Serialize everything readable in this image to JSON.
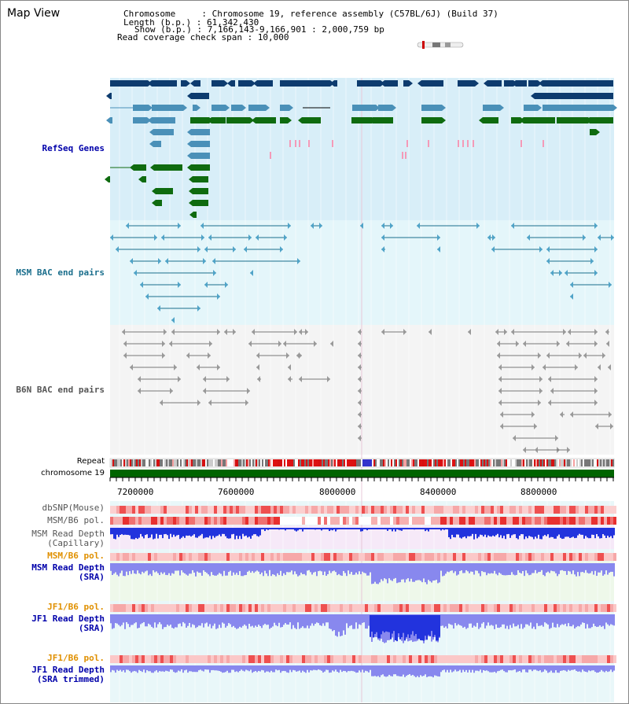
{
  "header": {
    "view_title": "Map View",
    "chromosome_label": "Chromosome     : Chromosome 19, reference assembly (C57BL/6J) (Build 37)",
    "length_label": "Length (b.p.) : 61,342,430",
    "show_label": "Show (b.p.) : 7,166,143-9,166,901 : 2,000,759 bp",
    "coverage_label": "Read coverage check span : 10,000"
  },
  "tracks": {
    "refseq": "RefSeq Genes",
    "msm_bac": "MSM BAC end pairs",
    "b6n_bac": "B6N BAC end pairs",
    "repeat": "Repeat",
    "chromosome": "chromosome 19",
    "dbsnp": "dbSNP(Mouse)",
    "msm_pol": "MSM/B6 pol.",
    "msm_depth_cap": "MSM Read Depth\n(Capillary)",
    "msm_pol2": "MSM/B6 pol.",
    "msm_depth_sra": "MSM Read Depth\n(SRA)",
    "jf1_pol": "JF1/B6 pol.",
    "jf1_depth_sra": "JF1 Read Depth\n(SRA)",
    "jf1_pol2": "JF1/B6 pol.",
    "jf1_depth_trim": "JF1 Read Depth\n(SRA trimmed)"
  },
  "axis": {
    "ticks": [
      "7200000",
      "7600000",
      "8000000",
      "8400000",
      "8800000"
    ]
  },
  "colors": {
    "refseq_bg": "#d8eef8",
    "bac_bg": "#e4f6fa",
    "b6n_bg": "#f4f4f4",
    "gene_dark": "#0d3b6e",
    "gene_mid": "#4a90b8",
    "gene_green": "#0f6b0f",
    "msm_line": "#1a6e8c",
    "b6n_line": "#777777",
    "depth_blue": "#2233dd",
    "depth_light": "#8888ee",
    "chrom_green": "#006400"
  }
}
